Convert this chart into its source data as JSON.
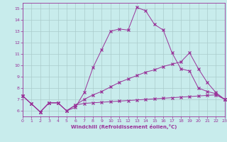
{
  "xlabel": "Windchill (Refroidissement éolien,°C)",
  "bg_color": "#c8ecec",
  "line_color": "#993399",
  "grid_color": "#aacccc",
  "xlim": [
    0,
    23
  ],
  "ylim": [
    5.5,
    15.5
  ],
  "xticks": [
    0,
    1,
    2,
    3,
    4,
    5,
    6,
    7,
    8,
    9,
    10,
    11,
    12,
    13,
    14,
    15,
    16,
    17,
    18,
    19,
    20,
    21,
    22,
    23
  ],
  "yticks": [
    6,
    7,
    8,
    9,
    10,
    11,
    12,
    13,
    14,
    15
  ],
  "series1_x": [
    0,
    1,
    2,
    3,
    4,
    5,
    6,
    7,
    8,
    9,
    10,
    11,
    12,
    13,
    14,
    15,
    16,
    17,
    18,
    19,
    20,
    21,
    22,
    23
  ],
  "series1_y": [
    7.3,
    6.6,
    5.9,
    6.7,
    6.7,
    6.0,
    6.3,
    7.6,
    9.8,
    11.4,
    13.0,
    13.2,
    13.1,
    15.1,
    14.8,
    13.6,
    13.1,
    11.1,
    9.7,
    9.5,
    8.0,
    7.7,
    7.5,
    7.0
  ],
  "series2_x": [
    0,
    1,
    2,
    3,
    4,
    5,
    6,
    7,
    8,
    9,
    10,
    11,
    12,
    13,
    14,
    15,
    16,
    17,
    18,
    19,
    20,
    21,
    22,
    23
  ],
  "series2_y": [
    7.3,
    6.6,
    5.9,
    6.7,
    6.7,
    6.0,
    6.5,
    6.65,
    6.7,
    6.75,
    6.8,
    6.85,
    6.9,
    6.95,
    7.0,
    7.05,
    7.1,
    7.15,
    7.2,
    7.25,
    7.3,
    7.35,
    7.4,
    7.0
  ],
  "series3_x": [
    0,
    1,
    2,
    3,
    4,
    5,
    6,
    7,
    8,
    9,
    10,
    11,
    12,
    13,
    14,
    15,
    16,
    17,
    18,
    19,
    20,
    21,
    22,
    23
  ],
  "series3_y": [
    7.3,
    6.6,
    5.9,
    6.7,
    6.7,
    6.0,
    6.5,
    7.0,
    7.4,
    7.7,
    8.1,
    8.5,
    8.8,
    9.1,
    9.4,
    9.6,
    9.9,
    10.1,
    10.3,
    11.1,
    9.7,
    8.5,
    7.6,
    7.0
  ]
}
